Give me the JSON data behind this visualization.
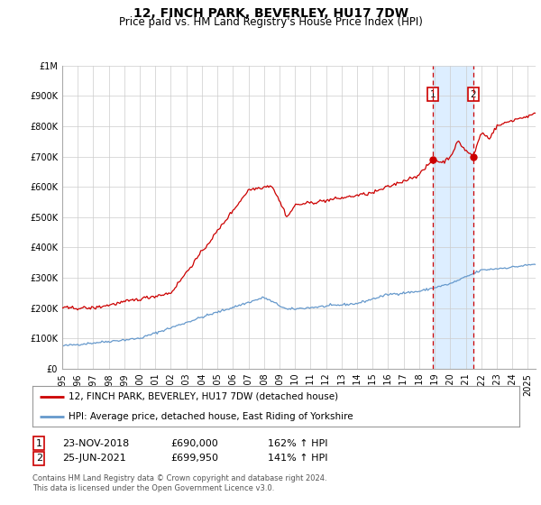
{
  "title": "12, FINCH PARK, BEVERLEY, HU17 7DW",
  "subtitle": "Price paid vs. HM Land Registry's House Price Index (HPI)",
  "ylabel_ticks": [
    "£0",
    "£100K",
    "£200K",
    "£300K",
    "£400K",
    "£500K",
    "£600K",
    "£700K",
    "£800K",
    "£900K",
    "£1M"
  ],
  "ytick_values": [
    0,
    100000,
    200000,
    300000,
    400000,
    500000,
    600000,
    700000,
    800000,
    900000,
    1000000
  ],
  "ylim": [
    0,
    1000000
  ],
  "xlim_start": 1995.0,
  "xlim_end": 2025.5,
  "sale1_date": 2018.9,
  "sale1_price": 690000,
  "sale1_label": "1",
  "sale2_date": 2021.48,
  "sale2_price": 699950,
  "sale2_label": "2",
  "shading_color": "#ddeeff",
  "hpi_line_color": "#6699cc",
  "price_line_color": "#cc0000",
  "vline_color": "#cc0000",
  "grid_color": "#cccccc",
  "background_color": "#ffffff",
  "legend_label1": "12, FINCH PARK, BEVERLEY, HU17 7DW (detached house)",
  "legend_label2": "HPI: Average price, detached house, East Riding of Yorkshire",
  "table_row1": [
    "1",
    "23-NOV-2018",
    "£690,000",
    "162% ↑ HPI"
  ],
  "table_row2": [
    "2",
    "25-JUN-2021",
    "£699,950",
    "141% ↑ HPI"
  ],
  "footnote": "Contains HM Land Registry data © Crown copyright and database right 2024.\nThis data is licensed under the Open Government Licence v3.0.",
  "title_fontsize": 10,
  "subtitle_fontsize": 8.5,
  "tick_fontsize": 7,
  "legend_fontsize": 7.5,
  "table_fontsize": 8,
  "footnote_fontsize": 6
}
